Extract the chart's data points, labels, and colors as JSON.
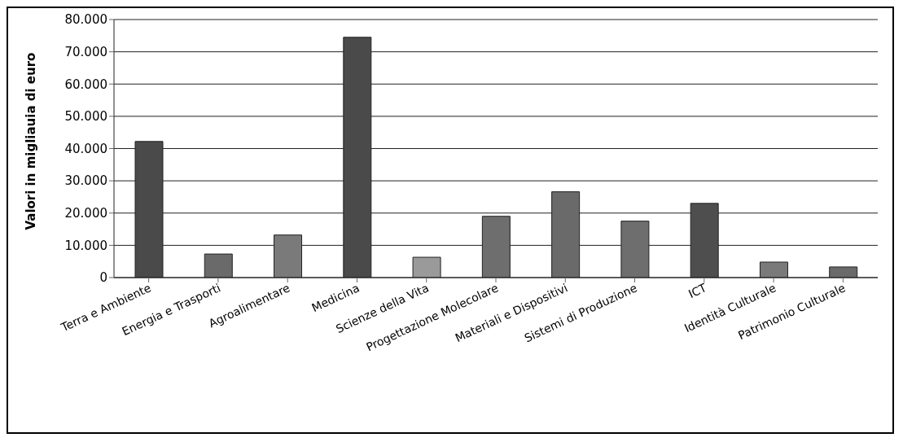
{
  "chart_data": {
    "type": "bar",
    "ylabel": "Valori in migliauia di euro",
    "categories": [
      "Terra e Ambiente",
      "Energia e Trasporti",
      "Agroalimentare",
      "Medicina",
      "Scienze della Vita",
      "Progettazione Molecolare",
      "Materiali e Dispositivi",
      "Sistemi di Produzione",
      "ICT",
      "Identità Culturale",
      "Patrimonio Culturale"
    ],
    "values": [
      42200,
      7300,
      13200,
      74500,
      6300,
      19000,
      26600,
      17500,
      23000,
      4800,
      3300
    ],
    "colors": [
      "#4a4a4a",
      "#6a6a6a",
      "#7a7a7a",
      "#4a4a4a",
      "#9a9a9a",
      "#6e6e6e",
      "#6a6a6a",
      "#6e6e6e",
      "#4e4e4e",
      "#7a7a7a",
      "#6a6a6a"
    ],
    "ylim": [
      0,
      80000
    ],
    "yticks": [
      {
        "value": 0,
        "label": "0"
      },
      {
        "value": 10000,
        "label": "10.000"
      },
      {
        "value": 20000,
        "label": "20.000"
      },
      {
        "value": 30000,
        "label": "30.000"
      },
      {
        "value": 40000,
        "label": "40.000"
      },
      {
        "value": 50000,
        "label": "50.000"
      },
      {
        "value": 60000,
        "label": "60.000"
      },
      {
        "value": 70000,
        "label": "70.000"
      },
      {
        "value": 80000,
        "label": "80.000"
      }
    ],
    "grid": "y",
    "legend": false
  }
}
